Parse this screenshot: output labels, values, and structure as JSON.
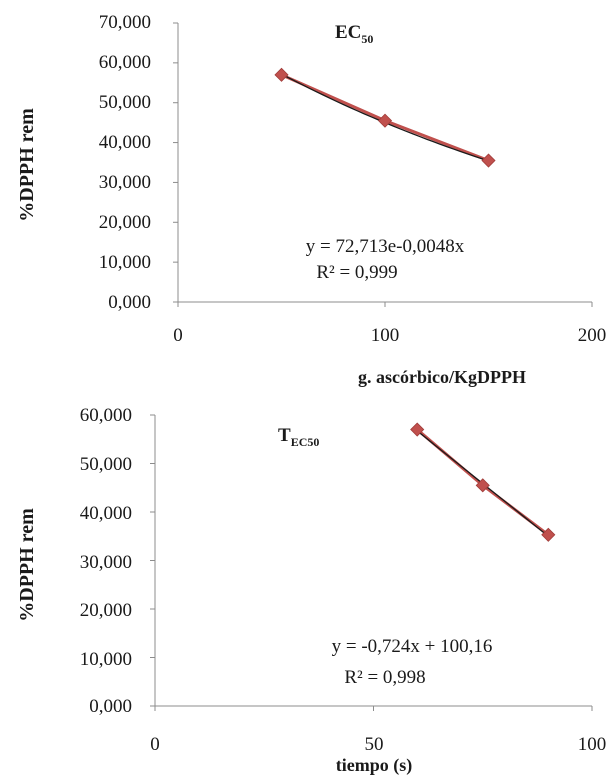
{
  "chart_data": [
    {
      "type": "scatter",
      "title": "EC",
      "title_sub": "50",
      "xlabel": "g. ascórbico/KgDPPH",
      "ylabel": "%DPPH rem",
      "xlim": [
        0,
        200
      ],
      "ylim": [
        0,
        70000
      ],
      "x_ticks": [
        "0",
        "100",
        "200"
      ],
      "y_ticks": [
        "0,000",
        "10,000",
        "20,000",
        "30,000",
        "40,000",
        "50,000",
        "60,000",
        "70,000"
      ],
      "grid": false,
      "series": [
        {
          "x": [
            50,
            100,
            150
          ],
          "y": [
            57000,
            45500,
            35500
          ],
          "marker": "diamond",
          "color": "#c0504d"
        }
      ],
      "trendline": {
        "kind": "exponential",
        "a": 72713,
        "b": -0.0048,
        "color": "#1a1a1a"
      },
      "equation": "y = 72,713e-0,0048x",
      "r2_label": "R² = 0,999"
    },
    {
      "type": "scatter",
      "title": "T",
      "title_sub": "EC50",
      "xlabel": "tiempo (s)",
      "ylabel": "%DPPH rem",
      "xlim": [
        0,
        100
      ],
      "ylim": [
        0,
        60000
      ],
      "x_ticks": [
        "0",
        "50",
        "100"
      ],
      "y_ticks": [
        "0,000",
        "10,000",
        "20,000",
        "30,000",
        "40,000",
        "50,000",
        "60,000"
      ],
      "grid": false,
      "series": [
        {
          "x": [
            60,
            75,
            90
          ],
          "y": [
            57000,
            45500,
            35300
          ],
          "marker": "diamond",
          "color": "#c0504d"
        }
      ],
      "trendline": {
        "kind": "linear",
        "slope": -724,
        "intercept": 100160,
        "color": "#1a1a1a"
      },
      "equation": "y = -0,724x + 100,16",
      "r2_label": "R² = 0,998"
    }
  ]
}
